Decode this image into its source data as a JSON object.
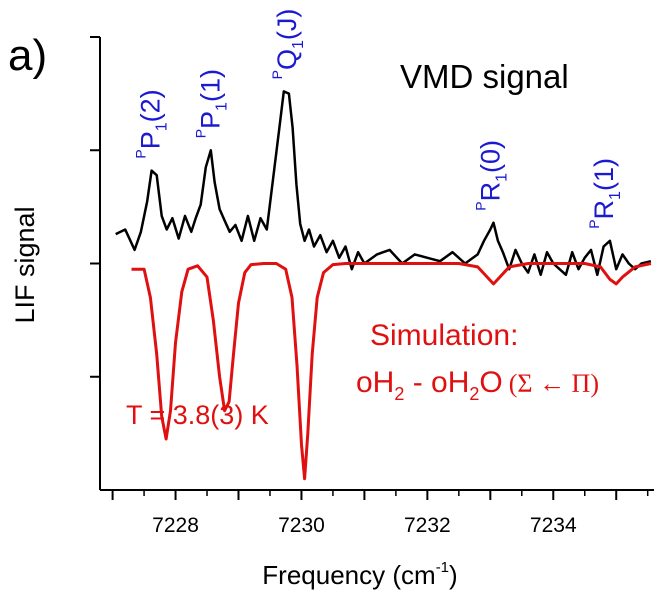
{
  "chart_data": {
    "type": "line",
    "panel_label": "a)",
    "title": "VMD signal",
    "xlabel": {
      "main": "Frequency (cm",
      "sup": "-1",
      "close": ")"
    },
    "ylabel": "LIF signal",
    "xlim": [
      7226.8,
      7235.6
    ],
    "ylim": [
      -2.0,
      2.0
    ],
    "xticks": [
      7228,
      7230,
      7232,
      7234
    ],
    "xtick_labels": [
      "7228",
      "7230",
      "7232",
      "7234"
    ],
    "y_ticks_unlabeled": true,
    "grid": false,
    "series": [
      {
        "role": "measured",
        "color": "#000000",
        "x": [
          7227.05,
          7227.2,
          7227.35,
          7227.45,
          7227.55,
          7227.62,
          7227.7,
          7227.78,
          7227.86,
          7227.95,
          7228.05,
          7228.15,
          7228.25,
          7228.32,
          7228.4,
          7228.48,
          7228.56,
          7228.62,
          7228.7,
          7228.78,
          7228.86,
          7228.95,
          7229.05,
          7229.15,
          7229.25,
          7229.35,
          7229.45,
          7229.55,
          7229.65,
          7229.72,
          7229.8,
          7229.86,
          7229.92,
          7229.98,
          7230.05,
          7230.12,
          7230.2,
          7230.3,
          7230.4,
          7230.5,
          7230.6,
          7230.7,
          7230.8,
          7230.9,
          7231.0,
          7231.2,
          7231.4,
          7231.6,
          7231.8,
          7232.0,
          7232.2,
          7232.4,
          7232.6,
          7232.8,
          7232.9,
          7233.0,
          7233.05,
          7233.12,
          7233.2,
          7233.3,
          7233.4,
          7233.5,
          7233.6,
          7233.7,
          7233.8,
          7233.9,
          7234.0,
          7234.1,
          7234.2,
          7234.3,
          7234.4,
          7234.5,
          7234.6,
          7234.7,
          7234.8,
          7234.9,
          7235.0,
          7235.1,
          7235.2,
          7235.3,
          7235.4,
          7235.55
        ],
        "y": [
          0.26,
          0.3,
          0.12,
          0.28,
          0.55,
          0.82,
          0.78,
          0.42,
          0.3,
          0.4,
          0.22,
          0.42,
          0.28,
          0.4,
          0.52,
          0.85,
          1.0,
          0.72,
          0.48,
          0.38,
          0.28,
          0.34,
          0.2,
          0.42,
          0.2,
          0.4,
          0.3,
          0.75,
          1.2,
          1.52,
          1.5,
          1.2,
          0.7,
          0.35,
          0.2,
          0.3,
          0.15,
          0.25,
          0.1,
          0.2,
          0.05,
          0.15,
          -0.05,
          0.1,
          0.0,
          0.08,
          0.12,
          0.0,
          0.08,
          0.05,
          0.02,
          0.1,
          0.0,
          0.08,
          0.2,
          0.3,
          0.36,
          0.2,
          0.1,
          -0.05,
          0.12,
          0.0,
          -0.08,
          0.08,
          -0.1,
          0.1,
          0.0,
          -0.05,
          -0.1,
          0.1,
          -0.05,
          0.05,
          0.12,
          -0.1,
          0.15,
          0.2,
          -0.05,
          0.08,
          0.0,
          -0.05,
          0.0,
          0.02
        ]
      },
      {
        "role": "simulation",
        "color": "#e01010",
        "x": [
          7227.3,
          7227.5,
          7227.6,
          7227.7,
          7227.78,
          7227.85,
          7227.92,
          7228.0,
          7228.1,
          7228.2,
          7228.35,
          7228.5,
          7228.6,
          7228.7,
          7228.78,
          7228.85,
          7228.92,
          7229.0,
          7229.1,
          7229.2,
          7229.4,
          7229.6,
          7229.75,
          7229.85,
          7229.93,
          7230.0,
          7230.05,
          7230.1,
          7230.17,
          7230.25,
          7230.35,
          7230.5,
          7230.7,
          7231.0,
          7231.5,
          7232.0,
          7232.5,
          7232.8,
          7232.95,
          7233.05,
          7233.15,
          7233.3,
          7233.6,
          7234.0,
          7234.5,
          7234.75,
          7234.9,
          7235.0,
          7235.1,
          7235.3,
          7235.55
        ],
        "y": [
          -0.05,
          -0.05,
          -0.3,
          -0.8,
          -1.35,
          -1.55,
          -1.3,
          -0.7,
          -0.25,
          -0.05,
          -0.02,
          -0.12,
          -0.5,
          -1.0,
          -1.3,
          -1.22,
          -0.8,
          -0.35,
          -0.08,
          -0.01,
          0.0,
          0.0,
          -0.05,
          -0.3,
          -0.9,
          -1.6,
          -1.9,
          -1.5,
          -0.8,
          -0.3,
          -0.08,
          -0.01,
          0.0,
          0.0,
          0.0,
          0.0,
          0.0,
          -0.03,
          -0.12,
          -0.18,
          -0.12,
          -0.03,
          0.0,
          0.0,
          0.0,
          -0.03,
          -0.14,
          -0.18,
          -0.12,
          -0.03,
          0.0
        ]
      }
    ],
    "peak_labels": [
      {
        "x": 7227.65,
        "y": 0.82,
        "pre": "P",
        "main": "P",
        "sub": "1",
        "arg": "(2)"
      },
      {
        "x": 7228.6,
        "y": 1.0,
        "pre": "P",
        "main": "P",
        "sub": "1",
        "arg": "(1)"
      },
      {
        "x": 7229.82,
        "y": 1.52,
        "pre": "P",
        "main": "Q",
        "sub": "1",
        "arg": "(J)"
      },
      {
        "x": 7233.05,
        "y": 0.36,
        "pre": "P",
        "main": "R",
        "sub": "1",
        "arg": "(0)"
      },
      {
        "x": 7234.85,
        "y": 0.2,
        "pre": "P",
        "main": "R",
        "sub": "1",
        "arg": "(1)"
      }
    ],
    "annotations": {
      "simulation_title": "Simulation:",
      "simulation_species": {
        "a": "oH",
        "a_sub": "2",
        "mid": " - oH",
        "b_sub": "2",
        "b": "O",
        "transition": "(Σ ← Π)"
      },
      "temperature": "T = 3.8(3) K"
    },
    "colors": {
      "measured": "#000000",
      "simulation": "#e01010",
      "labels": "#1a1ad0",
      "axes": "#000000"
    }
  }
}
